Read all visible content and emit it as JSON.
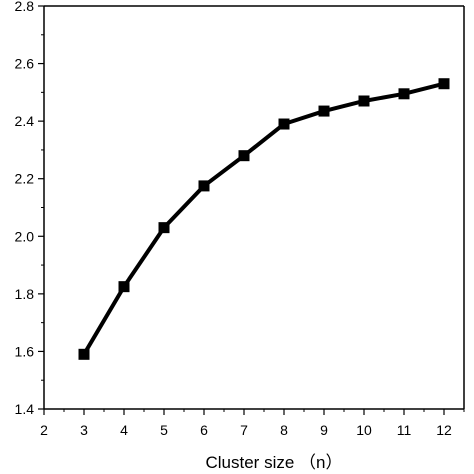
{
  "chart_data": {
    "type": "line",
    "title": "",
    "xlabel": "Cluster size （n）",
    "ylabel": "",
    "xlim": [
      2,
      12.5
    ],
    "ylim": [
      1.4,
      2.8
    ],
    "x_ticks": [
      "2",
      "3",
      "4",
      "5",
      "6",
      "7",
      "8",
      "9",
      "10",
      "11",
      "12"
    ],
    "y_ticks": [
      "1.4",
      "1.6",
      "1.8",
      "2.0",
      "2.2",
      "2.4",
      "2.6",
      "2.8"
    ],
    "grid": false,
    "marker": "square",
    "line_color": "#000000",
    "series": [
      {
        "x": [
          3,
          4,
          5,
          6,
          7,
          8,
          9,
          10,
          11,
          12
        ],
        "values": [
          1.59,
          1.825,
          2.03,
          2.175,
          2.28,
          2.39,
          2.435,
          2.47,
          2.495,
          2.53
        ]
      }
    ]
  }
}
